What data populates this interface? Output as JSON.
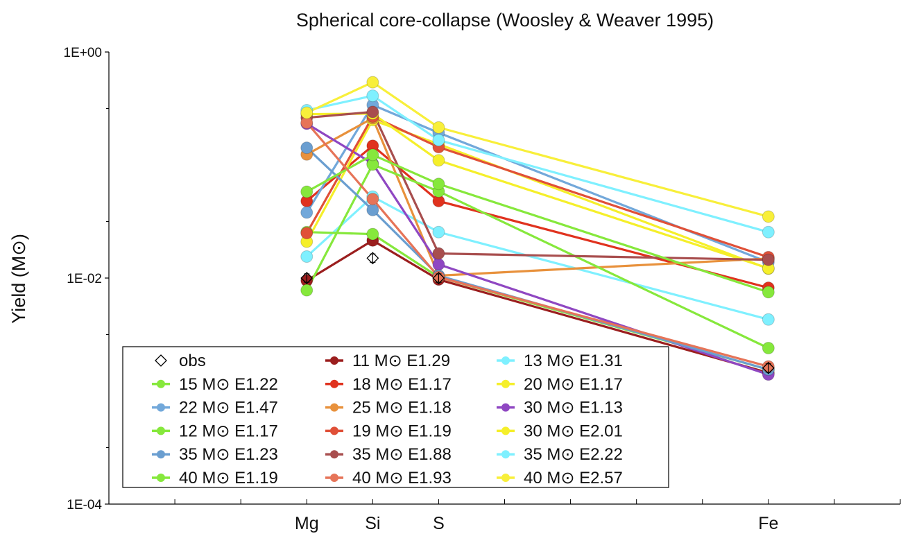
{
  "chart_data": {
    "type": "line",
    "title": "Spherical core-collapse (Woosley & Weaver 1995)",
    "xlabel": "",
    "ylabel": "Yield (M⊙)",
    "yscale": "log",
    "ylim": [
      0.0001,
      1
    ],
    "yticks": [
      {
        "value": 0.0001,
        "label": "1E-04"
      },
      {
        "value": 0.01,
        "label": "1E-02"
      },
      {
        "value": 1,
        "label": "1E+00"
      }
    ],
    "categories": [
      "Mg",
      "Si",
      "S",
      "Fe"
    ],
    "category_positions": [
      3,
      4,
      5,
      10
    ],
    "xlim": [
      0,
      12
    ],
    "grid": false,
    "legend_position": "lower-left",
    "observed": {
      "name": "obs",
      "values": [
        0.01,
        0.015,
        0.01,
        0.0016
      ]
    },
    "series": [
      {
        "name": "11 M⊙ E1.29",
        "color": "#9b1e1e",
        "values": [
          0.0095,
          0.0215,
          0.0097,
          0.00145
        ]
      },
      {
        "name": "13 M⊙ E1.31",
        "color": "#7ff0ff",
        "values": [
          0.0155,
          0.0525,
          0.0255,
          0.0043
        ]
      },
      {
        "name": "15 M⊙ E1.22",
        "color": "#86e83c",
        "values": [
          0.0255,
          0.0245,
          0.0102,
          0.00155
        ]
      },
      {
        "name": "18 M⊙ E1.17",
        "color": "#e0321e",
        "values": [
          0.048,
          0.148,
          0.048,
          0.0082
        ]
      },
      {
        "name": "20 M⊙ E1.17",
        "color": "#f5ef2a",
        "values": [
          0.021,
          0.25,
          0.153,
          0.0121
        ]
      },
      {
        "name": "22 M⊙ E1.47",
        "color": "#72a8da",
        "values": [
          0.038,
          0.34,
          0.193,
          0.0138
        ]
      },
      {
        "name": "25 M⊙ E1.18",
        "color": "#e8913c",
        "values": [
          0.124,
          0.26,
          0.0105,
          0.0149
        ]
      },
      {
        "name": "30 M⊙ E1.13",
        "color": "#8f47c2",
        "values": [
          0.232,
          0.103,
          0.0132,
          0.0014
        ]
      },
      {
        "name": "12 M⊙ E1.17",
        "color": "#86e83c",
        "values": [
          0.0078,
          0.101,
          0.0585,
          0.0024
        ]
      },
      {
        "name": "19 M⊙ E1.19",
        "color": "#e05038",
        "values": [
          0.025,
          0.269,
          0.144,
          0.0153
        ]
      },
      {
        "name": "30 M⊙ E2.01",
        "color": "#f5ef2a",
        "values": [
          0.282,
          0.285,
          0.11,
          0.0122
        ]
      },
      {
        "name": "35 M⊙ E1.23",
        "color": "#6a9ed0",
        "values": [
          0.142,
          0.04,
          0.0105,
          0.00155
        ]
      },
      {
        "name": "35 M⊙ E1.88",
        "color": "#a84e4e",
        "values": [
          0.262,
          0.295,
          0.0165,
          0.0145
        ]
      },
      {
        "name": "35 M⊙ E2.22",
        "color": "#7ff0ff",
        "values": [
          0.305,
          0.41,
          0.166,
          0.0255
        ]
      },
      {
        "name": "40 M⊙ E1.19",
        "color": "#86e83c",
        "values": [
          0.058,
          0.123,
          0.068,
          0.0075
        ]
      },
      {
        "name": "40 M⊙ E1.93",
        "color": "#e67458",
        "values": [
          0.237,
          0.05,
          0.0102,
          0.00165
        ]
      },
      {
        "name": "40 M⊙ E2.57",
        "color": "#f8ef3a",
        "values": [
          0.29,
          0.54,
          0.215,
          0.035
        ]
      }
    ],
    "legend_order": [
      "obs",
      "11 M⊙ E1.29",
      "13 M⊙ E1.31",
      "15 M⊙ E1.22",
      "18 M⊙ E1.17",
      "20 M⊙ E1.17",
      "22 M⊙ E1.47",
      "25 M⊙ E1.18",
      "30 M⊙ E1.13",
      "12 M⊙ E1.17",
      "19 M⊙ E1.19",
      "30 M⊙ E2.01",
      "35 M⊙ E1.23",
      "35 M⊙ E1.88",
      "35 M⊙ E2.22",
      "40 M⊙ E1.19",
      "40 M⊙ E1.93",
      "40 M⊙ E2.57"
    ]
  }
}
